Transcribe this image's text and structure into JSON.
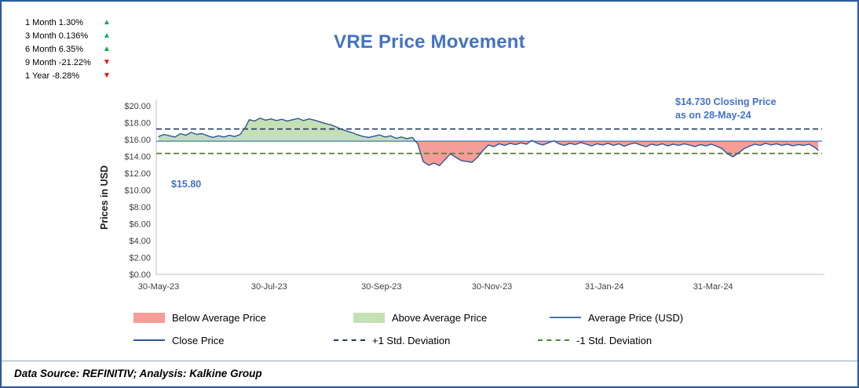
{
  "frame": {
    "title": "VRE Price Movement",
    "footer": "Data Source: REFINITIV; Analysis: Kalkine Group"
  },
  "stats": {
    "items": [
      {
        "label": "1 Month 1.30%",
        "arrow": "▲",
        "direction": "up"
      },
      {
        "label": "3 Month 0.136%",
        "arrow": "▲",
        "direction": "up"
      },
      {
        "label": "6 Month 6.35%",
        "arrow": "▲",
        "direction": "up"
      },
      {
        "label": "9 Month -21.22%",
        "arrow": "▼",
        "direction": "down"
      },
      {
        "label": "1 Year -8.28%",
        "arrow": "▼",
        "direction": "down"
      }
    ]
  },
  "annotations": {
    "closing_line1": "$14.730 Closing Price",
    "closing_line2": "as on 28-May-24",
    "average_price_label": "$15.80"
  },
  "legend": {
    "below_avg": "Below Average Price",
    "above_avg": "Above Average Price",
    "avg": "Average Price (USD)",
    "close": "Close Price",
    "plus_std": "+1 Std. Deviation",
    "minus_std": "-1 Std. Deviation"
  },
  "chart_data": {
    "type": "line",
    "title": "VRE Price Movement",
    "ylabel": "Prices in USD",
    "ylim": [
      0,
      20
    ],
    "y_tick_values": [
      0,
      2,
      4,
      6,
      8,
      10,
      12,
      14,
      16,
      18,
      20
    ],
    "y_tick_labels": [
      "$0.00",
      "$2.00",
      "$4.00",
      "$6.00",
      "$8.00",
      "$10.00",
      "$12.00",
      "$14.00",
      "$16.00",
      "$18.00",
      "$20.00"
    ],
    "x_ticks": [
      {
        "label": "30-May-23",
        "day": 0
      },
      {
        "label": "30-Jul-23",
        "day": 61
      },
      {
        "label": "30-Sep-23",
        "day": 123
      },
      {
        "label": "30-Nov-23",
        "day": 184
      },
      {
        "label": "31-Jan-24",
        "day": 246
      },
      {
        "label": "31-Mar-24",
        "day": 306
      }
    ],
    "x_range_days": 364,
    "average_price": 15.8,
    "plus_one_std": 17.25,
    "minus_one_std": 14.35,
    "closing_price": 14.73,
    "closing_date": "28-May-24",
    "legend_entries": [
      "Below Average Price",
      "Above Average Price",
      "Average Price (USD)",
      "Close Price",
      "+1 Std. Deviation",
      "-1 Std. Deviation"
    ],
    "colors": {
      "below_fill": "#f59d98",
      "above_fill": "#c5e0b4",
      "average_line": "#4472c4",
      "close_line": "#2e5597",
      "plus_std_line": "#1f3864",
      "minus_std_line": "#548235",
      "axis": "#bfbfbf",
      "title_blue": "#4472c4"
    },
    "close_series": [
      [
        0,
        16.35
      ],
      [
        3,
        16.6
      ],
      [
        6,
        16.45
      ],
      [
        9,
        16.3
      ],
      [
        12,
        16.7
      ],
      [
        15,
        16.5
      ],
      [
        18,
        16.85
      ],
      [
        21,
        16.6
      ],
      [
        24,
        16.7
      ],
      [
        27,
        16.45
      ],
      [
        30,
        16.25
      ],
      [
        33,
        16.45
      ],
      [
        36,
        16.3
      ],
      [
        39,
        16.5
      ],
      [
        42,
        16.35
      ],
      [
        45,
        16.6
      ],
      [
        48,
        17.5
      ],
      [
        50,
        18.35
      ],
      [
        53,
        18.2
      ],
      [
        56,
        18.55
      ],
      [
        59,
        18.3
      ],
      [
        62,
        18.45
      ],
      [
        65,
        18.25
      ],
      [
        68,
        18.4
      ],
      [
        71,
        18.2
      ],
      [
        74,
        18.35
      ],
      [
        77,
        18.5
      ],
      [
        80,
        18.25
      ],
      [
        83,
        18.45
      ],
      [
        86,
        18.3
      ],
      [
        89,
        18.1
      ],
      [
        92,
        17.9
      ],
      [
        95,
        17.75
      ],
      [
        98,
        17.5
      ],
      [
        101,
        17.2
      ],
      [
        104,
        17.0
      ],
      [
        107,
        16.8
      ],
      [
        110,
        16.55
      ],
      [
        113,
        16.35
      ],
      [
        116,
        16.25
      ],
      [
        119,
        16.4
      ],
      [
        122,
        16.55
      ],
      [
        125,
        16.3
      ],
      [
        128,
        16.45
      ],
      [
        131,
        16.15
      ],
      [
        134,
        16.3
      ],
      [
        137,
        16.1
      ],
      [
        140,
        16.25
      ],
      [
        143,
        15.5
      ],
      [
        146,
        13.4
      ],
      [
        149,
        12.95
      ],
      [
        152,
        13.2
      ],
      [
        155,
        12.9
      ],
      [
        158,
        13.6
      ],
      [
        161,
        14.3
      ],
      [
        164,
        13.9
      ],
      [
        167,
        13.5
      ],
      [
        170,
        13.4
      ],
      [
        173,
        13.3
      ],
      [
        176,
        13.9
      ],
      [
        179,
        14.7
      ],
      [
        182,
        15.35
      ],
      [
        185,
        15.15
      ],
      [
        188,
        15.5
      ],
      [
        191,
        15.3
      ],
      [
        194,
        15.55
      ],
      [
        197,
        15.4
      ],
      [
        200,
        15.6
      ],
      [
        203,
        15.45
      ],
      [
        206,
        15.9
      ],
      [
        209,
        15.55
      ],
      [
        212,
        15.35
      ],
      [
        215,
        15.6
      ],
      [
        218,
        15.85
      ],
      [
        221,
        15.5
      ],
      [
        224,
        15.3
      ],
      [
        227,
        15.55
      ],
      [
        230,
        15.4
      ],
      [
        233,
        15.65
      ],
      [
        236,
        15.45
      ],
      [
        239,
        15.25
      ],
      [
        242,
        15.5
      ],
      [
        245,
        15.35
      ],
      [
        248,
        15.55
      ],
      [
        251,
        15.3
      ],
      [
        254,
        15.5
      ],
      [
        257,
        15.2
      ],
      [
        260,
        15.45
      ],
      [
        263,
        15.6
      ],
      [
        266,
        15.35
      ],
      [
        269,
        15.15
      ],
      [
        272,
        15.45
      ],
      [
        275,
        15.3
      ],
      [
        278,
        15.5
      ],
      [
        281,
        15.25
      ],
      [
        284,
        15.45
      ],
      [
        287,
        15.3
      ],
      [
        290,
        15.5
      ],
      [
        293,
        15.35
      ],
      [
        296,
        15.15
      ],
      [
        299,
        15.4
      ],
      [
        302,
        15.25
      ],
      [
        305,
        15.45
      ],
      [
        308,
        15.2
      ],
      [
        311,
        14.9
      ],
      [
        314,
        14.3
      ],
      [
        317,
        13.95
      ],
      [
        320,
        14.4
      ],
      [
        323,
        14.9
      ],
      [
        326,
        15.2
      ],
      [
        329,
        15.45
      ],
      [
        332,
        15.3
      ],
      [
        335,
        15.55
      ],
      [
        338,
        15.35
      ],
      [
        341,
        15.5
      ],
      [
        344,
        15.3
      ],
      [
        347,
        15.45
      ],
      [
        350,
        15.25
      ],
      [
        353,
        15.4
      ],
      [
        356,
        15.3
      ],
      [
        359,
        15.45
      ],
      [
        362,
        15.1
      ],
      [
        364,
        14.73
      ]
    ]
  }
}
